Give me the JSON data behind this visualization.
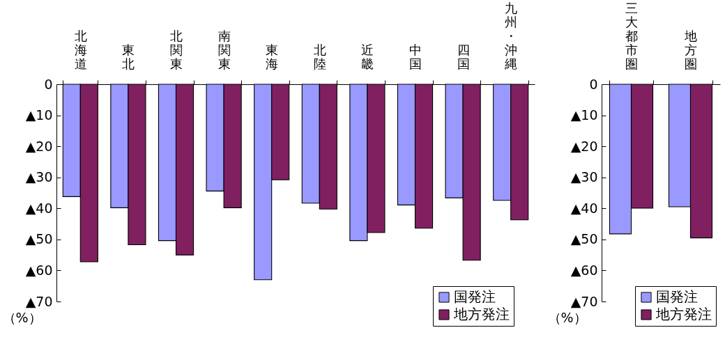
{
  "chart_data": [
    {
      "type": "bar",
      "categories": [
        "北海道",
        "東北",
        "北関東",
        "南関東",
        "東海",
        "北陸",
        "近畿",
        "中国",
        "四国",
        "九州・沖縄"
      ],
      "series": [
        {
          "name": "国発注",
          "color": "#9999ff",
          "values": [
            -36.2,
            -39.8,
            -50.4,
            -34.4,
            -63.0,
            -38.3,
            -50.4,
            -38.9,
            -36.6,
            -37.4
          ]
        },
        {
          "name": "地方発注",
          "color": "#802060",
          "values": [
            -57.2,
            -51.7,
            -55.0,
            -39.8,
            -30.8,
            -40.2,
            -47.8,
            -46.4,
            -56.7,
            -43.7
          ]
        }
      ],
      "ylabel": "（%）",
      "ylim": [
        -70,
        0
      ],
      "yticks": [
        0,
        {
          "value": -10,
          "label": "▲10"
        },
        {
          "value": -20,
          "label": "▲20"
        },
        {
          "value": -30,
          "label": "▲30"
        },
        {
          "value": -40,
          "label": "▲40"
        },
        {
          "value": -50,
          "label": "▲50"
        },
        {
          "value": -60,
          "label": "▲60"
        },
        {
          "value": -70,
          "label": "▲70"
        }
      ],
      "legend": "bottom right"
    },
    {
      "type": "bar",
      "categories": [
        "三大都市圏",
        "地方圏"
      ],
      "series": [
        {
          "name": "国発注",
          "color": "#9999ff",
          "values": [
            -48.2,
            -39.5
          ]
        },
        {
          "name": "地方発注",
          "color": "#802060",
          "values": [
            -39.9,
            -49.5
          ]
        }
      ],
      "ylabel": "（%）",
      "ylim": [
        -70,
        0
      ],
      "yticks": [
        0,
        {
          "value": -10,
          "label": "▲10"
        },
        {
          "value": -20,
          "label": "▲20"
        },
        {
          "value": -30,
          "label": "▲30"
        },
        {
          "value": -40,
          "label": "▲40"
        },
        {
          "value": -50,
          "label": "▲50"
        },
        {
          "value": -60,
          "label": "▲60"
        },
        {
          "value": -70,
          "label": "▲70"
        }
      ],
      "legend": "bottom right"
    }
  ]
}
